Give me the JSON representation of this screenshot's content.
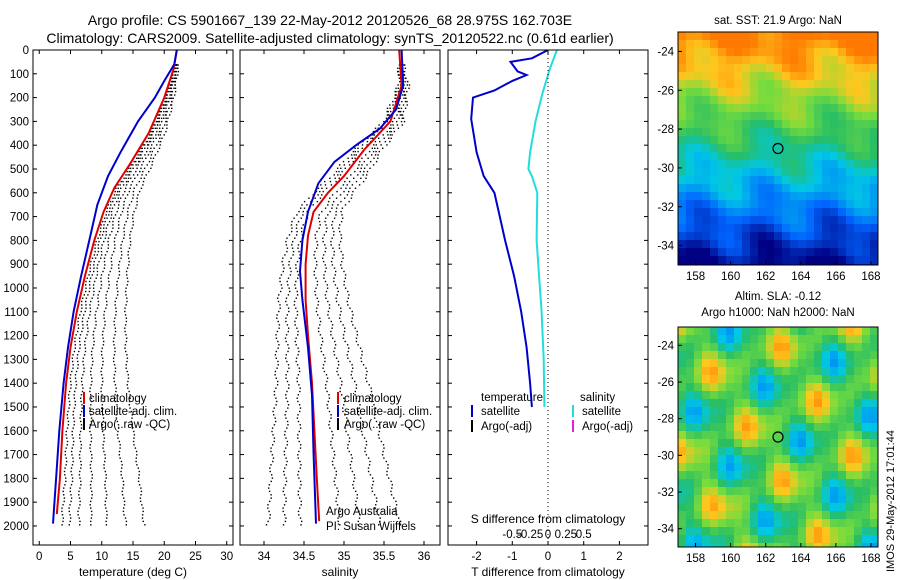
{
  "header": {
    "line1": "Argo profile: CS 5901667_139 22-May-2012 20120526_68 28.975S 162.703E",
    "line2": "Climatology: CARS2009. Satellite-adjusted climatology: synTS_20120522.nc (0.61d earlier)"
  },
  "colors": {
    "climatology": "#dd0000",
    "satellite": "#0000cc",
    "argo": "#000000",
    "salinity_sat": "#22dddd",
    "salinity_argo": "#dd22dd"
  },
  "chart_data": [
    {
      "type": "line",
      "id": "temperature",
      "xlabel": "temperature (deg C)",
      "xlim": [
        -1,
        31
      ],
      "ylim": [
        2080,
        0
      ],
      "xticks": [
        0,
        5,
        10,
        15,
        20,
        25,
        30
      ],
      "yticks": [
        0,
        100,
        200,
        300,
        400,
        500,
        600,
        700,
        800,
        900,
        1000,
        1100,
        1200,
        1300,
        1400,
        1500,
        1600,
        1700,
        1800,
        1900,
        2000
      ],
      "legend": [
        "climatology",
        "satellite-adj. clim.",
        "Argo(..raw -QC)"
      ],
      "series": [
        {
          "name": "climatology",
          "color": "#dd0000",
          "points": [
            [
              22.0,
              0
            ],
            [
              21.5,
              80
            ],
            [
              20.0,
              200
            ],
            [
              17.5,
              350
            ],
            [
              14.5,
              480
            ],
            [
              12.0,
              580
            ],
            [
              10.3,
              680
            ],
            [
              8.8,
              800
            ],
            [
              7.3,
              950
            ],
            [
              6.0,
              1100
            ],
            [
              5.0,
              1250
            ],
            [
              4.3,
              1400
            ],
            [
              3.7,
              1600
            ],
            [
              3.3,
              1800
            ],
            [
              2.8,
              1950
            ]
          ]
        },
        {
          "name": "satellite-adj. clim.",
          "color": "#0000cc",
          "points": [
            [
              22.0,
              0
            ],
            [
              21.6,
              60
            ],
            [
              20.0,
              130
            ],
            [
              18.5,
              200
            ],
            [
              15.8,
              300
            ],
            [
              13.0,
              430
            ],
            [
              11.0,
              530
            ],
            [
              9.3,
              650
            ],
            [
              8.0,
              800
            ],
            [
              6.7,
              950
            ],
            [
              5.5,
              1100
            ],
            [
              4.6,
              1250
            ],
            [
              3.9,
              1400
            ],
            [
              3.2,
              1600
            ],
            [
              2.7,
              1800
            ],
            [
              2.2,
              1990
            ]
          ]
        }
      ]
    },
    {
      "type": "line",
      "id": "salinity",
      "xlabel": "salinity",
      "xlim": [
        33.7,
        36.2
      ],
      "ylim": [
        2080,
        0
      ],
      "xticks": [
        34,
        34.5,
        35,
        35.5,
        36
      ],
      "xticklabels": [
        "34",
        "34.5",
        "35",
        "35.5",
        "36"
      ],
      "legend": [
        "climatology",
        "satellite-adj. clim.",
        "Argo(..raw -QC)"
      ],
      "annotation": [
        "Argo Australia",
        "PI: Susan Wijffels"
      ],
      "series": [
        {
          "name": "climatology",
          "color": "#dd0000",
          "points": [
            [
              35.69,
              0
            ],
            [
              35.72,
              150
            ],
            [
              35.58,
              300
            ],
            [
              35.25,
              420
            ],
            [
              35.0,
              530
            ],
            [
              34.8,
              600
            ],
            [
              34.62,
              680
            ],
            [
              34.55,
              780
            ],
            [
              34.52,
              900
            ],
            [
              34.52,
              1050
            ],
            [
              34.55,
              1200
            ],
            [
              34.6,
              1400
            ],
            [
              34.63,
              1600
            ],
            [
              34.66,
              1800
            ],
            [
              34.69,
              1980
            ]
          ]
        },
        {
          "name": "satellite-adj. clim.",
          "color": "#0000cc",
          "points": [
            [
              35.72,
              0
            ],
            [
              35.74,
              150
            ],
            [
              35.65,
              250
            ],
            [
              35.45,
              330
            ],
            [
              35.15,
              400
            ],
            [
              34.88,
              470
            ],
            [
              34.68,
              560
            ],
            [
              34.55,
              680
            ],
            [
              34.48,
              800
            ],
            [
              34.45,
              930
            ],
            [
              34.48,
              1050
            ],
            [
              34.55,
              1250
            ],
            [
              34.6,
              1450
            ],
            [
              34.62,
              1700
            ],
            [
              34.65,
              1990
            ]
          ]
        }
      ]
    },
    {
      "type": "line",
      "id": "difference",
      "xlabel_top": "S difference from climatology",
      "xlabel": "T difference from climatology",
      "xlim": [
        -2.8,
        2.8
      ],
      "ylim": [
        2080,
        0
      ],
      "xticks": [
        -2,
        -1,
        0,
        1,
        2
      ],
      "xticklabels": [
        "-2",
        "-1",
        "0",
        "1",
        "2"
      ],
      "xticks_top": [
        -1,
        -0.5,
        0,
        0.5,
        1
      ],
      "xticklabels_top": [
        "-0.5",
        "-0.25",
        "0",
        "0.25",
        "0.5"
      ],
      "legend_left": {
        "title": "temperature",
        "items": [
          "satellite",
          "Argo(-adj)"
        ]
      },
      "legend_right": {
        "title": "salinity",
        "items": [
          "satellite",
          "Argo(-adj)"
        ]
      },
      "series": [
        {
          "name": "satellite",
          "quantity": "temperature",
          "color": "#0000cc",
          "points": [
            [
              0.0,
              0
            ],
            [
              -0.45,
              35
            ],
            [
              -1.05,
              50
            ],
            [
              -0.85,
              90
            ],
            [
              -0.6,
              105
            ],
            [
              -1.0,
              130
            ],
            [
              -1.5,
              170
            ],
            [
              -2.1,
              200
            ],
            [
              -2.15,
              290
            ],
            [
              -2.0,
              430
            ],
            [
              -1.8,
              530
            ],
            [
              -1.5,
              600
            ],
            [
              -1.35,
              700
            ],
            [
              -1.2,
              800
            ],
            [
              -0.95,
              950
            ],
            [
              -0.75,
              1100
            ],
            [
              -0.6,
              1250
            ],
            [
              -0.5,
              1400
            ],
            [
              -0.45,
              1500
            ]
          ]
        },
        {
          "name": "satellite",
          "quantity": "salinity",
          "color": "#22dddd",
          "points": [
            [
              0.25,
              0
            ],
            [
              0.05,
              80
            ],
            [
              -0.15,
              180
            ],
            [
              -0.35,
              300
            ],
            [
              -0.5,
              430
            ],
            [
              -0.55,
              500
            ],
            [
              -0.45,
              530
            ],
            [
              -0.3,
              600
            ],
            [
              -0.32,
              800
            ],
            [
              -0.25,
              950
            ],
            [
              -0.18,
              1100
            ],
            [
              -0.12,
              1300
            ],
            [
              -0.1,
              1500
            ]
          ]
        }
      ]
    },
    {
      "type": "heatmap",
      "id": "sst-map",
      "title": "sat. SST: 21.9 Argo: NaN",
      "xlim": [
        157,
        168.4
      ],
      "ylim": [
        -35,
        -23
      ],
      "xticks": [
        158,
        160,
        162,
        164,
        166,
        168
      ],
      "yticks": [
        -24,
        -26,
        -28,
        -30,
        -32,
        -34
      ],
      "marker": [
        162.7,
        -29.0
      ]
    },
    {
      "type": "heatmap",
      "id": "sla-map",
      "title": "Altim. SLA: -0.12",
      "subtitle": "Argo h1000: NaN h2000: NaN",
      "xlim": [
        157,
        168.4
      ],
      "ylim": [
        -35,
        -23
      ],
      "xticks": [
        158,
        160,
        162,
        164,
        166,
        168
      ],
      "yticks": [
        -24,
        -26,
        -28,
        -30,
        -32,
        -34
      ],
      "marker": [
        162.7,
        -29.0
      ]
    }
  ],
  "footer": {
    "stamp": "IMOS 29-May-2012 17:01:44"
  }
}
